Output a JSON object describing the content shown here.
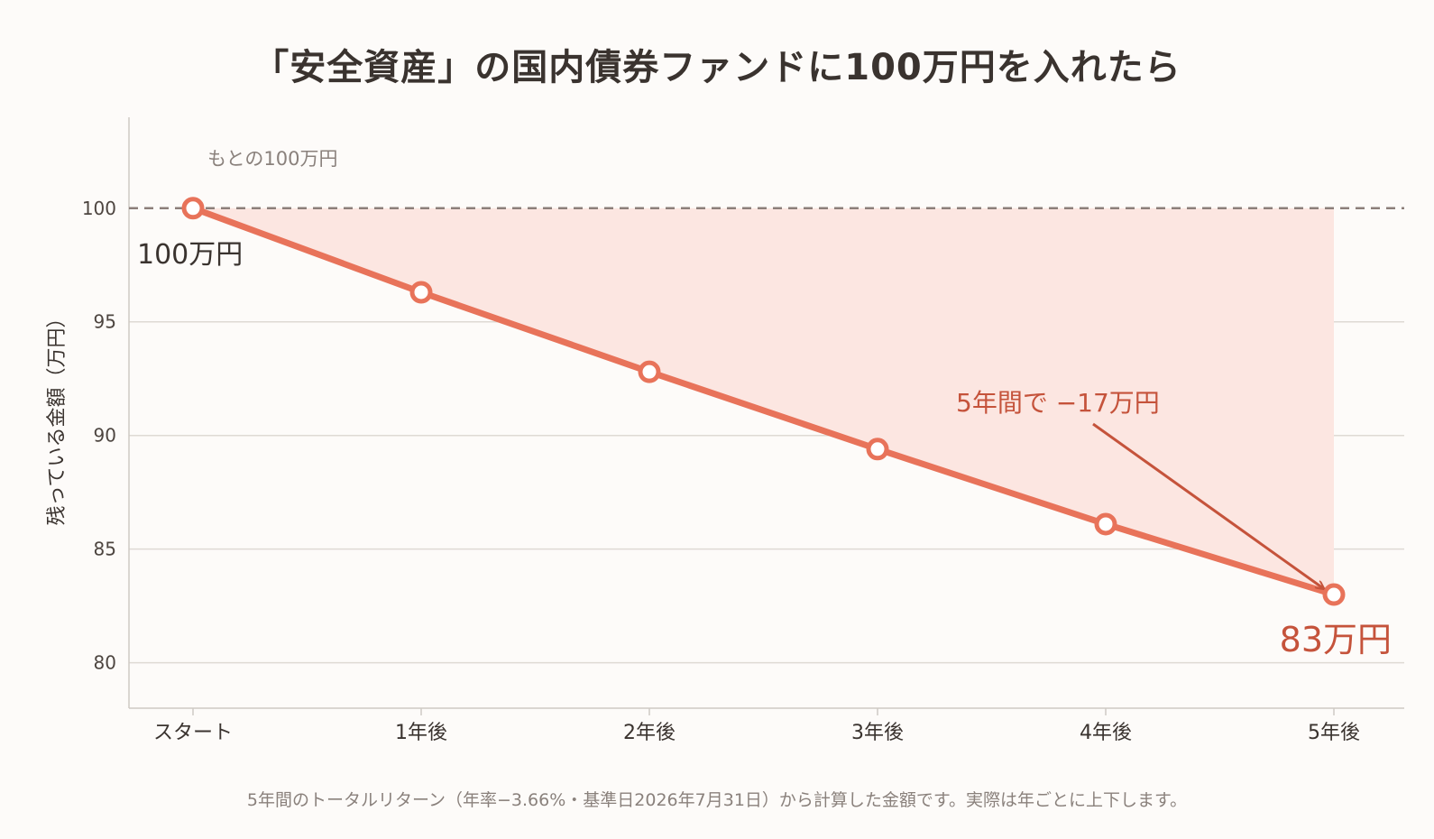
{
  "title": "「安全資産」の国内債券ファンドに100万円を入れたら",
  "footnote": "5年間のトータルリターン（年率−3.66%・基準日2026年7月31日）から計算した金額です。実際は年ごとに上下します。",
  "colors": {
    "line": "#e8735a",
    "fill": "#fce6e1",
    "reference": "#8c7f7a",
    "accent": "#c5533b",
    "grid": "#dedad4",
    "background": "#fdfbf9"
  },
  "chart_data": {
    "type": "line",
    "categories": [
      "スタート",
      "1年後",
      "2年後",
      "3年後",
      "4年後",
      "5年後"
    ],
    "series": [
      {
        "values": [
          100,
          96.3,
          92.8,
          89.4,
          86.1,
          83.0
        ]
      }
    ],
    "ylabel": "残っている金額（万円）",
    "ylim": [
      78,
      104
    ],
    "yticks": [
      80,
      85,
      90,
      95,
      100
    ],
    "grid": true,
    "reference_line": {
      "value": 100,
      "label": "もとの100万円"
    },
    "point_labels": {
      "start": "100万円",
      "end": "83万円"
    },
    "annotation": {
      "text": "5年間で −17万円"
    }
  }
}
